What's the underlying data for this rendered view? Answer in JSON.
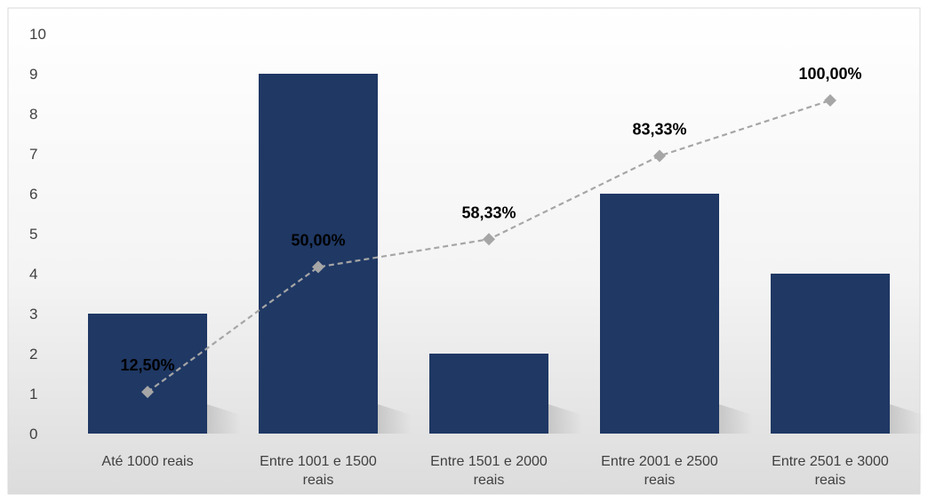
{
  "chart_data": {
    "type": "bar",
    "categories": [
      [
        "Até 1000 reais"
      ],
      [
        "Entre 1001 e 1500",
        "reais"
      ],
      [
        "Entre 1501 e 2000",
        "reais"
      ],
      [
        "Entre 2001 e 2500",
        "reais"
      ],
      [
        "Entre 2501 e 3000",
        "reais"
      ]
    ],
    "series": [
      {
        "type": "bar",
        "values": [
          3,
          9,
          2,
          6,
          4
        ],
        "color": "#1f3864"
      },
      {
        "type": "line",
        "values": [
          12.5,
          50.0,
          58.33,
          83.33,
          100.0
        ],
        "labels": [
          "12,50%",
          "50,00%",
          "58,33%",
          "83,33%",
          "100,00%"
        ],
        "color": "#a6a6a6",
        "line_style": "dashed",
        "marker": "diamond",
        "axis": "secondary",
        "axis_range": [
          0,
          120
        ]
      }
    ],
    "y_ticks": [
      "0",
      "1",
      "2",
      "3",
      "4",
      "5",
      "6",
      "7",
      "8",
      "9",
      "10"
    ],
    "ylim": [
      0,
      10
    ],
    "title": "",
    "xlabel": "",
    "ylabel": "",
    "grid": false,
    "legend": "none"
  }
}
